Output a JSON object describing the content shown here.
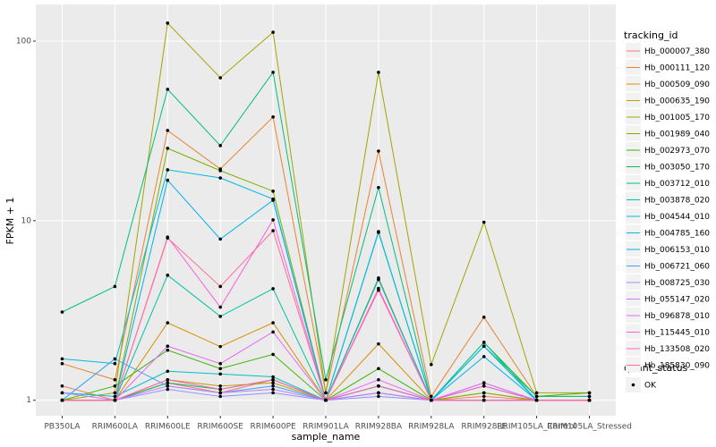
{
  "chart_data": {
    "type": "line",
    "x_label": "sample_name",
    "y_label": "FPKM + 1",
    "log_y": true,
    "grid": true,
    "categories": [
      "PB350LA",
      "RRIM600LA",
      "RRIM600LE",
      "RRIM600SE",
      "RRIM600PE",
      "RRIM901LA",
      "RRIM928BA",
      "RRIM928LA",
      "RRIM928LE",
      "RRIM105LA_Control",
      "RRIM105LA_Stressed"
    ],
    "ylim": [
      0.82,
      160
    ],
    "yticks": [
      1,
      10,
      100
    ],
    "legend_title": "tracking_id",
    "shape_legend": {
      "title": "quant_status",
      "labels": [
        "OK"
      ]
    },
    "series": [
      {
        "name": "Hb_000007_380",
        "color": "#F8766D",
        "values": [
          1.2,
          1.0,
          1.25,
          1.1,
          1.3,
          1.0,
          1.1,
          1.0,
          1.05,
          1.0,
          1.0
        ]
      },
      {
        "name": "Hb_000111_120",
        "color": "#EA8331",
        "values": [
          1.6,
          1.3,
          31.8,
          19.4,
          37.8,
          1.1,
          24.4,
          1.05,
          2.9,
          1.05,
          1.05
        ]
      },
      {
        "name": "Hb_000509_090",
        "color": "#D89000",
        "values": [
          1.0,
          1.0,
          2.7,
          1.99,
          2.7,
          1.0,
          2.06,
          1.0,
          1.1,
          1.0,
          1.0
        ]
      },
      {
        "name": "Hb_000635_190",
        "color": "#C09B00",
        "values": [
          1.0,
          1.0,
          1.3,
          1.2,
          1.25,
          1.0,
          1.2,
          1.0,
          1.0,
          1.0,
          1.0
        ]
      },
      {
        "name": "Hb_001005_170",
        "color": "#A3A500",
        "values": [
          1.0,
          1.1,
          126,
          62.5,
          112,
          1.1,
          67,
          1.58,
          9.8,
          1.1,
          1.1
        ]
      },
      {
        "name": "Hb_001989_040",
        "color": "#7CAE00",
        "values": [
          1.0,
          1.0,
          25.3,
          19,
          14.6,
          1.0,
          4.8,
          1.0,
          1.1,
          1.0,
          1.0
        ]
      },
      {
        "name": "Hb_002973_070",
        "color": "#39B600",
        "values": [
          1.0,
          1.2,
          1.9,
          1.5,
          1.8,
          1.0,
          1.5,
          1.0,
          2.1,
          1.05,
          1.1
        ]
      },
      {
        "name": "Hb_003050_170",
        "color": "#00BB4E",
        "values": [
          1.0,
          1.0,
          1.25,
          1.15,
          1.3,
          1.0,
          1.2,
          1.0,
          1.2,
          1.0,
          1.0
        ]
      },
      {
        "name": "Hb_003712_010",
        "color": "#00BF7D",
        "values": [
          3.1,
          4.3,
          53.9,
          26.2,
          67,
          1.3,
          15.3,
          1.0,
          2.0,
          1.05,
          1.05
        ]
      },
      {
        "name": "Hb_003878_020",
        "color": "#00C1A3",
        "values": [
          1.0,
          1.0,
          4.97,
          2.93,
          4.18,
          1.0,
          8.6,
          1.0,
          2.1,
          1.0,
          1.0
        ]
      },
      {
        "name": "Hb_004544_010",
        "color": "#00BFC4",
        "values": [
          1.1,
          1.05,
          1.45,
          1.4,
          1.35,
          1.0,
          1.2,
          1.0,
          1.0,
          1.0,
          1.0
        ]
      },
      {
        "name": "Hb_004785_160",
        "color": "#00BAE0",
        "values": [
          1.7,
          1.6,
          19.2,
          17.3,
          13.2,
          1.0,
          8.7,
          1.0,
          2.0,
          1.0,
          1.0
        ]
      },
      {
        "name": "Hb_006153_010",
        "color": "#00B0F6",
        "values": [
          1.0,
          1.0,
          16.8,
          7.9,
          13.0,
          1.0,
          4.7,
          1.0,
          1.75,
          1.0,
          1.0
        ]
      },
      {
        "name": "Hb_006721_060",
        "color": "#35A2FF",
        "values": [
          1.0,
          1.7,
          1.2,
          1.1,
          1.2,
          1.0,
          1.1,
          1.0,
          1.0,
          1.0,
          1.0
        ]
      },
      {
        "name": "Hb_008725_030",
        "color": "#9590FF",
        "values": [
          1.0,
          1.0,
          1.15,
          1.05,
          1.1,
          1.0,
          1.05,
          1.0,
          1.0,
          1.0,
          1.0
        ]
      },
      {
        "name": "Hb_055147_020",
        "color": "#C77CFF",
        "values": [
          1.1,
          1.0,
          1.2,
          1.1,
          1.15,
          1.0,
          1.1,
          1.0,
          1.25,
          1.0,
          1.0
        ]
      },
      {
        "name": "Hb_096878_010",
        "color": "#E76BF3",
        "values": [
          1.0,
          1.0,
          2.0,
          1.6,
          2.4,
          1.0,
          1.3,
          1.0,
          1.25,
          1.0,
          1.0
        ]
      },
      {
        "name": "Hb_115445_010",
        "color": "#FA62DB",
        "values": [
          1.0,
          1.0,
          8.1,
          3.3,
          10.1,
          1.0,
          4.1,
          1.0,
          1.2,
          1.0,
          1.0
        ]
      },
      {
        "name": "Hb_133508_020",
        "color": "#FF62BC",
        "values": [
          1.0,
          1.0,
          1.3,
          1.15,
          1.3,
          1.0,
          1.2,
          1.0,
          1.0,
          1.0,
          1.0
        ]
      },
      {
        "name": "Hb_185830_090",
        "color": "#FF6C91",
        "values": [
          1.0,
          1.0,
          8.0,
          4.3,
          8.8,
          1.0,
          4.2,
          1.0,
          1.0,
          1.0,
          1.0
        ]
      }
    ]
  }
}
